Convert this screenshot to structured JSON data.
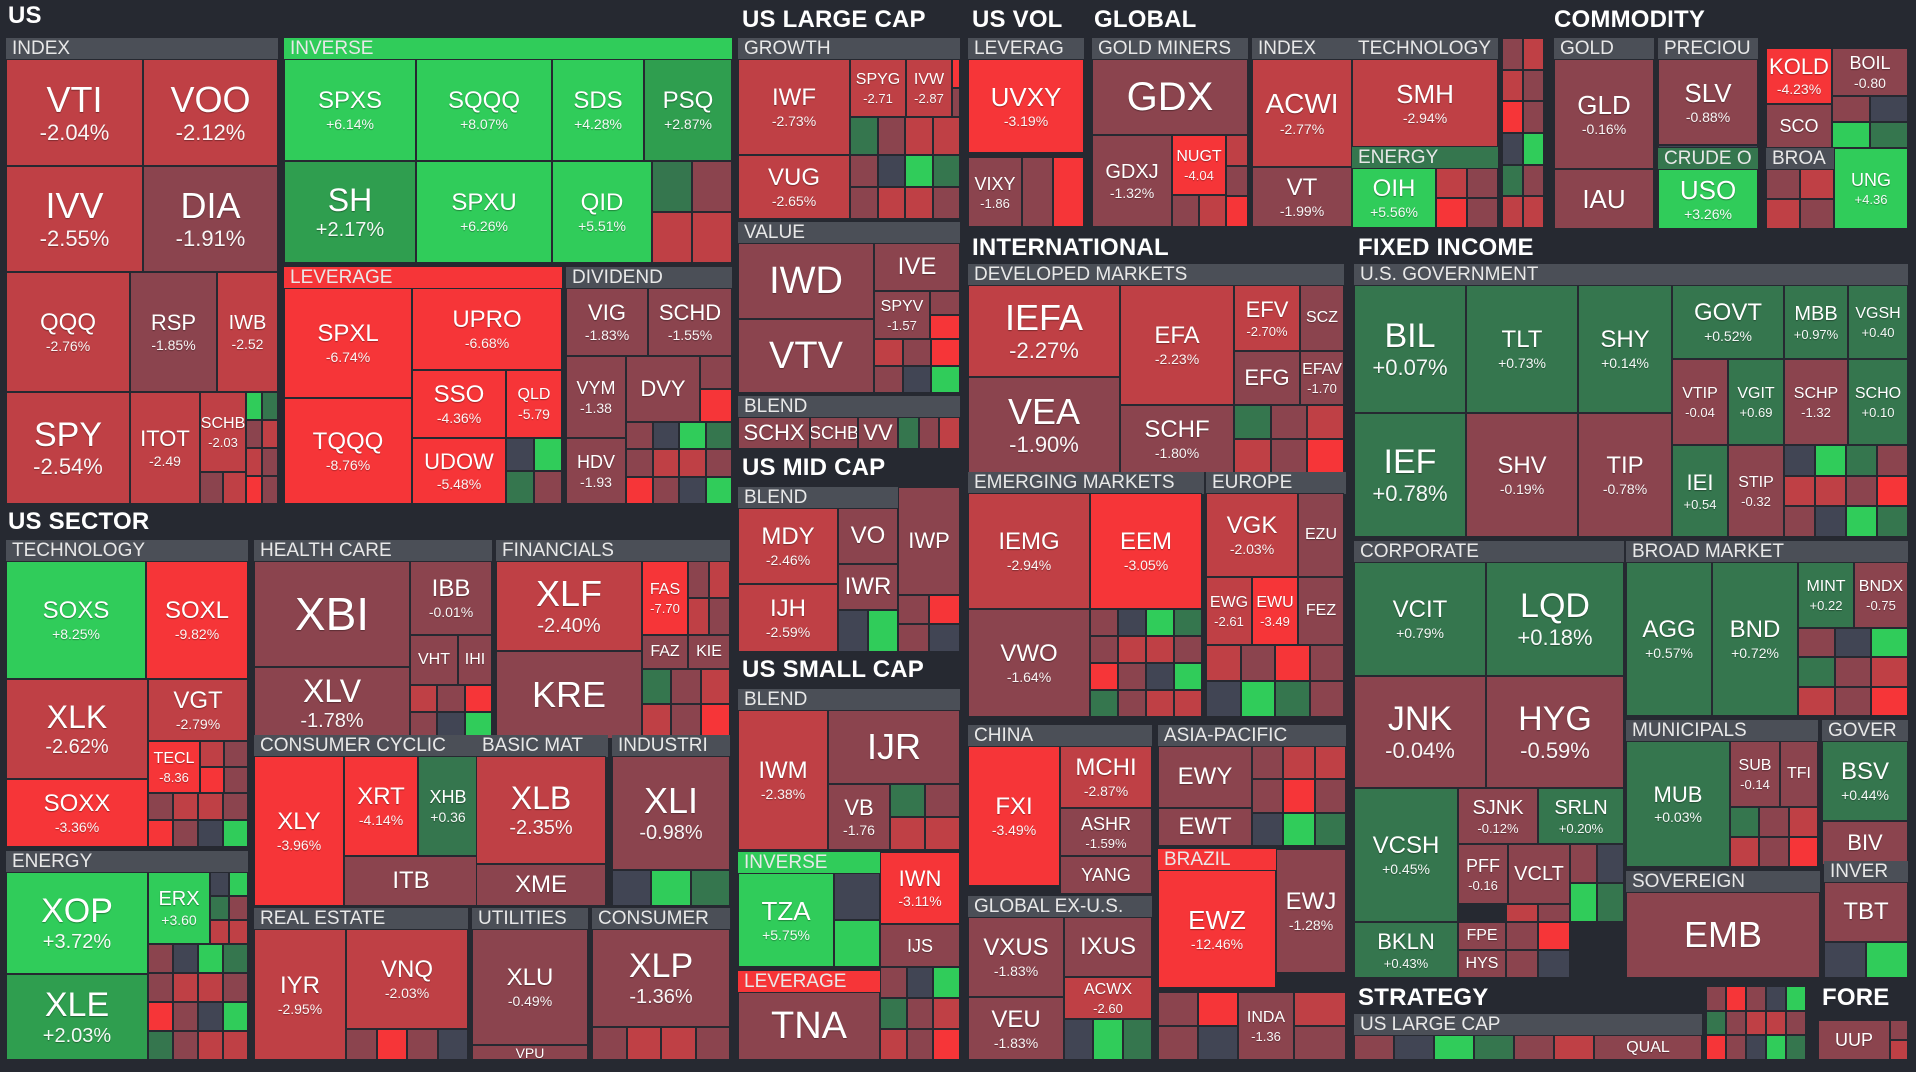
{
  "colors": {
    "background": "#262931",
    "group_header": "#4b4f57",
    "neg_strong": "#f63538",
    "neg_med": "#bf4045",
    "neg_weak": "#8b444e",
    "neutral": "#414554",
    "pos_weak": "#35764e",
    "pos_med": "#2f9e4f",
    "pos_strong": "#30cc5a"
  },
  "chart_data": {
    "type": "treemap",
    "metric": "daily % change",
    "sectors": [
      "US",
      "US LARGE CAP",
      "US VOL",
      "GLOBAL",
      "TECHNOLOG",
      "COMMODITY",
      "US SECTOR",
      "US MID CAP",
      "US SMALL CAP",
      "INTERNATIONAL",
      "FIXED INCOME",
      "STRATEGY",
      "FORE"
    ],
    "groups": [
      "INDEX",
      "INVERSE",
      "LEVERAGE",
      "DIVIDEND",
      "GROWTH",
      "VALUE",
      "BLEND",
      "LEVERAG",
      "GOLD MINERS",
      "ENERGY",
      "GOLD",
      "PRECIOU",
      "CRUDE O",
      "BROA",
      "TECHNOLOGY",
      "HEALTH CARE",
      "FINANCIALS",
      "CONSUMER CYCLIC",
      "BASIC MAT",
      "INDUSTRI",
      "REAL ESTATE",
      "UTILITIES",
      "CONSUMER",
      "DEVELOPED MARKETS",
      "EMERGING MARKETS",
      "EUROPE",
      "CHINA",
      "ASIA-PACIFIC",
      "GLOBAL EX-U.S.",
      "BRAZIL",
      "U.S. GOVERNMENT",
      "CORPORATE",
      "BROAD MARKET",
      "MUNICIPALS",
      "GOVER",
      "SOVEREIGN",
      "INVER",
      "US LARGE CAP"
    ],
    "tiles": [
      {
        "ticker": "VTI",
        "change": "-2.04%",
        "value": -2.04
      },
      {
        "ticker": "VOO",
        "change": "-2.12%",
        "value": -2.12
      },
      {
        "ticker": "IVV",
        "change": "-2.55%",
        "value": -2.55
      },
      {
        "ticker": "DIA",
        "change": "-1.91%",
        "value": -1.91
      },
      {
        "ticker": "QQQ",
        "change": "-2.76%",
        "value": -2.76
      },
      {
        "ticker": "RSP",
        "change": "-1.85%",
        "value": -1.85
      },
      {
        "ticker": "IWB",
        "change": "-2.52",
        "value": -2.52
      },
      {
        "ticker": "SPY",
        "change": "-2.54%",
        "value": -2.54
      },
      {
        "ticker": "ITOT",
        "change": "-2.49",
        "value": -2.49
      },
      {
        "ticker": "SCHB",
        "change": "-2.03",
        "value": -2.03
      },
      {
        "ticker": "SPXS",
        "change": "+6.14%",
        "value": 6.14
      },
      {
        "ticker": "SQQQ",
        "change": "+8.07%",
        "value": 8.07
      },
      {
        "ticker": "SDS",
        "change": "+4.28%",
        "value": 4.28
      },
      {
        "ticker": "PSQ",
        "change": "+2.87%",
        "value": 2.87
      },
      {
        "ticker": "SH",
        "change": "+2.17%",
        "value": 2.17
      },
      {
        "ticker": "SPXU",
        "change": "+6.26%",
        "value": 6.26
      },
      {
        "ticker": "QID",
        "change": "+5.51%",
        "value": 5.51
      },
      {
        "ticker": "SPXL",
        "change": "-6.74%",
        "value": -6.74
      },
      {
        "ticker": "UPRO",
        "change": "-6.68%",
        "value": -6.68
      },
      {
        "ticker": "SSO",
        "change": "-4.36%",
        "value": -4.36
      },
      {
        "ticker": "QLD",
        "change": "-5.79",
        "value": -5.79
      },
      {
        "ticker": "TQQQ",
        "change": "-8.76%",
        "value": -8.76
      },
      {
        "ticker": "UDOW",
        "change": "-5.48%",
        "value": -5.48
      },
      {
        "ticker": "VIG",
        "change": "-1.83%",
        "value": -1.83
      },
      {
        "ticker": "SCHD",
        "change": "-1.55%",
        "value": -1.55
      },
      {
        "ticker": "VYM",
        "change": "-1.38",
        "value": -1.38
      },
      {
        "ticker": "DVY",
        "change": "",
        "value": null
      },
      {
        "ticker": "HDV",
        "change": "-1.93",
        "value": -1.93
      },
      {
        "ticker": "IWF",
        "change": "-2.73%",
        "value": -2.73
      },
      {
        "ticker": "SPYG",
        "change": "-2.71",
        "value": -2.71
      },
      {
        "ticker": "IVW",
        "change": "-2.87",
        "value": -2.87
      },
      {
        "ticker": "VUG",
        "change": "-2.65%",
        "value": -2.65
      },
      {
        "ticker": "IWD",
        "change": "",
        "value": null
      },
      {
        "ticker": "IVE",
        "change": "",
        "value": null
      },
      {
        "ticker": "SPYV",
        "change": "-1.57",
        "value": -1.57
      },
      {
        "ticker": "VTV",
        "change": "",
        "value": null
      },
      {
        "ticker": "SCHX",
        "change": "",
        "value": null
      },
      {
        "ticker": "SCHB",
        "change": "",
        "value": null
      },
      {
        "ticker": "VV",
        "change": "",
        "value": null
      },
      {
        "ticker": "UVXY",
        "change": "-3.19%",
        "value": -3.19
      },
      {
        "ticker": "VIXY",
        "change": "-1.86",
        "value": -1.86
      },
      {
        "ticker": "GDX",
        "change": "",
        "value": null
      },
      {
        "ticker": "GDXJ",
        "change": "-1.32%",
        "value": -1.32
      },
      {
        "ticker": "NUGT",
        "change": "-4.04",
        "value": -4.04
      },
      {
        "ticker": "ACWI",
        "change": "-2.77%",
        "value": -2.77
      },
      {
        "ticker": "VT",
        "change": "-1.99%",
        "value": -1.99
      },
      {
        "ticker": "SMH",
        "change": "-2.94%",
        "value": -2.94
      },
      {
        "ticker": "OIH",
        "change": "+5.56%",
        "value": 5.56
      },
      {
        "ticker": "GLD",
        "change": "-0.16%",
        "value": -0.16
      },
      {
        "ticker": "IAU",
        "change": "",
        "value": null
      },
      {
        "ticker": "SLV",
        "change": "-0.88%",
        "value": -0.88
      },
      {
        "ticker": "KOLD",
        "change": "-4.23%",
        "value": -4.23
      },
      {
        "ticker": "BOIL",
        "change": "-0.80",
        "value": -0.8
      },
      {
        "ticker": "SCO",
        "change": "",
        "value": null
      },
      {
        "ticker": "USO",
        "change": "+3.26%",
        "value": 3.26
      },
      {
        "ticker": "UNG",
        "change": "+4.36",
        "value": 4.36
      },
      {
        "ticker": "SOXS",
        "change": "+8.25%",
        "value": 8.25
      },
      {
        "ticker": "SOXL",
        "change": "-9.82%",
        "value": -9.82
      },
      {
        "ticker": "XLK",
        "change": "-2.62%",
        "value": -2.62
      },
      {
        "ticker": "VGT",
        "change": "-2.79%",
        "value": -2.79
      },
      {
        "ticker": "TECL",
        "change": "-8.36",
        "value": -8.36
      },
      {
        "ticker": "SOXX",
        "change": "-3.36%",
        "value": -3.36
      },
      {
        "ticker": "XOP",
        "change": "+3.72%",
        "value": 3.72
      },
      {
        "ticker": "ERX",
        "change": "+3.60",
        "value": 3.6
      },
      {
        "ticker": "XLE",
        "change": "+2.03%",
        "value": 2.03
      },
      {
        "ticker": "XBI",
        "change": "",
        "value": null
      },
      {
        "ticker": "IBB",
        "change": "-0.01%",
        "value": -0.01
      },
      {
        "ticker": "XLV",
        "change": "-1.78%",
        "value": -1.78
      },
      {
        "ticker": "VHT",
        "change": "",
        "value": null
      },
      {
        "ticker": "IHI",
        "change": "",
        "value": null
      },
      {
        "ticker": "XLF",
        "change": "-2.40%",
        "value": -2.4
      },
      {
        "ticker": "FAS",
        "change": "-7.70",
        "value": -7.7
      },
      {
        "ticker": "FAZ",
        "change": "",
        "value": null
      },
      {
        "ticker": "KIE",
        "change": "",
        "value": null
      },
      {
        "ticker": "KRE",
        "change": "",
        "value": null
      },
      {
        "ticker": "XLY",
        "change": "-3.96%",
        "value": -3.96
      },
      {
        "ticker": "XRT",
        "change": "-4.14%",
        "value": -4.14
      },
      {
        "ticker": "XHB",
        "change": "+0.36",
        "value": 0.36
      },
      {
        "ticker": "ITB",
        "change": "",
        "value": null
      },
      {
        "ticker": "XLB",
        "change": "-2.35%",
        "value": -2.35
      },
      {
        "ticker": "XME",
        "change": "",
        "value": null
      },
      {
        "ticker": "XLI",
        "change": "-0.98%",
        "value": -0.98
      },
      {
        "ticker": "IYR",
        "change": "-2.95%",
        "value": -2.95
      },
      {
        "ticker": "VNQ",
        "change": "-2.03%",
        "value": -2.03
      },
      {
        "ticker": "XLU",
        "change": "-0.49%",
        "value": -0.49
      },
      {
        "ticker": "VPU",
        "change": "",
        "value": null
      },
      {
        "ticker": "XLP",
        "change": "-1.36%",
        "value": -1.36
      },
      {
        "ticker": "MDY",
        "change": "-2.46%",
        "value": -2.46
      },
      {
        "ticker": "VO",
        "change": "",
        "value": null
      },
      {
        "ticker": "IJH",
        "change": "-2.59%",
        "value": -2.59
      },
      {
        "ticker": "IWR",
        "change": "",
        "value": null
      },
      {
        "ticker": "IWP",
        "change": "",
        "value": null
      },
      {
        "ticker": "IWM",
        "change": "-2.38%",
        "value": -2.38
      },
      {
        "ticker": "IJR",
        "change": "",
        "value": null
      },
      {
        "ticker": "VB",
        "change": "-1.76",
        "value": -1.76
      },
      {
        "ticker": "TZA",
        "change": "+5.75%",
        "value": 5.75
      },
      {
        "ticker": "IWN",
        "change": "-3.11%",
        "value": -3.11
      },
      {
        "ticker": "IJS",
        "change": "",
        "value": null
      },
      {
        "ticker": "TNA",
        "change": "",
        "value": null
      },
      {
        "ticker": "IEFA",
        "change": "-2.27%",
        "value": -2.27
      },
      {
        "ticker": "EFA",
        "change": "-2.23%",
        "value": -2.23
      },
      {
        "ticker": "EFV",
        "change": "-2.70%",
        "value": -2.7
      },
      {
        "ticker": "SCZ",
        "change": "",
        "value": null
      },
      {
        "ticker": "EFG",
        "change": "",
        "value": null
      },
      {
        "ticker": "EFAV",
        "change": "-1.70",
        "value": -1.7
      },
      {
        "ticker": "VEA",
        "change": "-1.90%",
        "value": -1.9
      },
      {
        "ticker": "SCHF",
        "change": "-1.80%",
        "value": -1.8
      },
      {
        "ticker": "IEMG",
        "change": "-2.94%",
        "value": -2.94
      },
      {
        "ticker": "EEM",
        "change": "-3.05%",
        "value": -3.05
      },
      {
        "ticker": "VWO",
        "change": "-1.64%",
        "value": -1.64
      },
      {
        "ticker": "VGK",
        "change": "-2.03%",
        "value": -2.03
      },
      {
        "ticker": "EZU",
        "change": "",
        "value": null
      },
      {
        "ticker": "EWG",
        "change": "-2.61",
        "value": -2.61
      },
      {
        "ticker": "EWU",
        "change": "-3.49",
        "value": -3.49
      },
      {
        "ticker": "FEZ",
        "change": "",
        "value": null
      },
      {
        "ticker": "FXI",
        "change": "-3.49%",
        "value": -3.49
      },
      {
        "ticker": "MCHI",
        "change": "-2.87%",
        "value": -2.87
      },
      {
        "ticker": "ASHR",
        "change": "-1.59%",
        "value": -1.59
      },
      {
        "ticker": "YANG",
        "change": "",
        "value": null
      },
      {
        "ticker": "EWY",
        "change": "",
        "value": null
      },
      {
        "ticker": "EWT",
        "change": "",
        "value": null
      },
      {
        "ticker": "VXUS",
        "change": "-1.83%",
        "value": -1.83
      },
      {
        "ticker": "IXUS",
        "change": "",
        "value": null
      },
      {
        "ticker": "ACWX",
        "change": "-2.60",
        "value": -2.6
      },
      {
        "ticker": "VEU",
        "change": "-1.83%",
        "value": -1.83
      },
      {
        "ticker": "EWZ",
        "change": "-12.46%",
        "value": -12.46
      },
      {
        "ticker": "EWJ",
        "change": "-1.28%",
        "value": -1.28
      },
      {
        "ticker": "INDA",
        "change": "-1.36",
        "value": -1.36
      },
      {
        "ticker": "BIL",
        "change": "+0.07%",
        "value": 0.07
      },
      {
        "ticker": "TLT",
        "change": "+0.73%",
        "value": 0.73
      },
      {
        "ticker": "SHY",
        "change": "+0.14%",
        "value": 0.14
      },
      {
        "ticker": "GOVT",
        "change": "+0.52%",
        "value": 0.52
      },
      {
        "ticker": "MBB",
        "change": "+0.97%",
        "value": 0.97
      },
      {
        "ticker": "VGSH",
        "change": "+0.40",
        "value": 0.4
      },
      {
        "ticker": "IEF",
        "change": "+0.78%",
        "value": 0.78
      },
      {
        "ticker": "SHV",
        "change": "-0.19%",
        "value": -0.19
      },
      {
        "ticker": "TIP",
        "change": "-0.78%",
        "value": -0.78
      },
      {
        "ticker": "VTIP",
        "change": "-0.04",
        "value": -0.04
      },
      {
        "ticker": "VGIT",
        "change": "+0.69",
        "value": 0.69
      },
      {
        "ticker": "SCHP",
        "change": "-1.32",
        "value": -1.32
      },
      {
        "ticker": "SCHO",
        "change": "+0.10",
        "value": 0.1
      },
      {
        "ticker": "IEI",
        "change": "+0.54",
        "value": 0.54
      },
      {
        "ticker": "STIP",
        "change": "-0.32",
        "value": -0.32
      },
      {
        "ticker": "VCIT",
        "change": "+0.79%",
        "value": 0.79
      },
      {
        "ticker": "LQD",
        "change": "+0.18%",
        "value": 0.18
      },
      {
        "ticker": "JNK",
        "change": "-0.04%",
        "value": -0.04
      },
      {
        "ticker": "HYG",
        "change": "-0.59%",
        "value": -0.59
      },
      {
        "ticker": "VCSH",
        "change": "+0.45%",
        "value": 0.45
      },
      {
        "ticker": "SJNK",
        "change": "-0.12%",
        "value": -0.12
      },
      {
        "ticker": "SRLN",
        "change": "+0.20%",
        "value": 0.2
      },
      {
        "ticker": "PFF",
        "change": "-0.16",
        "value": -0.16
      },
      {
        "ticker": "VCLT",
        "change": "",
        "value": null
      },
      {
        "ticker": "BKLN",
        "change": "+0.43%",
        "value": 0.43
      },
      {
        "ticker": "FPE",
        "change": "",
        "value": null
      },
      {
        "ticker": "HYS",
        "change": "",
        "value": null
      },
      {
        "ticker": "AGG",
        "change": "+0.57%",
        "value": 0.57
      },
      {
        "ticker": "BND",
        "change": "+0.72%",
        "value": 0.72
      },
      {
        "ticker": "MINT",
        "change": "+0.22",
        "value": 0.22
      },
      {
        "ticker": "BNDX",
        "change": "-0.75",
        "value": -0.75
      },
      {
        "ticker": "MUB",
        "change": "+0.03%",
        "value": 0.03
      },
      {
        "ticker": "SUB",
        "change": "-0.14",
        "value": -0.14
      },
      {
        "ticker": "TFI",
        "change": "",
        "value": null
      },
      {
        "ticker": "BSV",
        "change": "+0.44%",
        "value": 0.44
      },
      {
        "ticker": "BIV",
        "change": "",
        "value": null
      },
      {
        "ticker": "EMB",
        "change": "",
        "value": null
      },
      {
        "ticker": "TBT",
        "change": "",
        "value": null
      },
      {
        "ticker": "QUAL",
        "change": "",
        "value": null
      },
      {
        "ticker": "UUP",
        "change": "",
        "value": null
      }
    ]
  }
}
